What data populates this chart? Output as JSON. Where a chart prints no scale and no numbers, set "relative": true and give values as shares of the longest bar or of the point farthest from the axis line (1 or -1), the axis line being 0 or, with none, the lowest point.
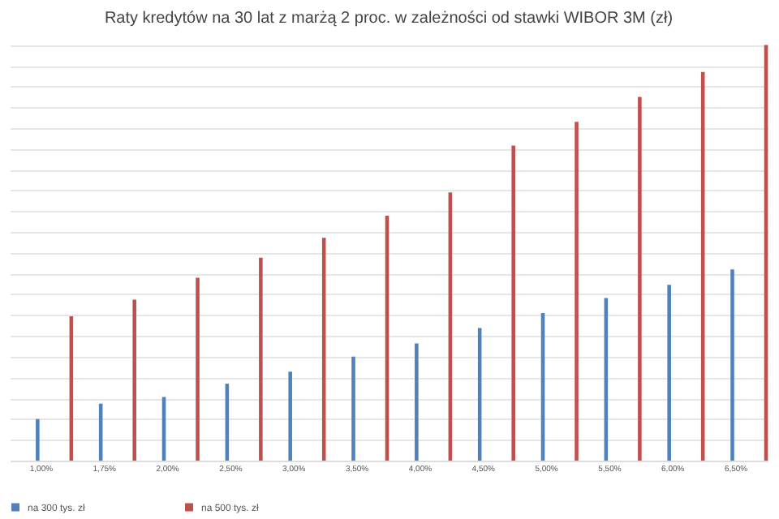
{
  "chart_data": {
    "type": "bar",
    "title": "Raty kredytów na 30 lat z marżą 2 proc. w zależności od stawki WIBOR 3M (zł)",
    "categories": [
      "1,00%",
      "1,75%",
      "2,00%",
      "2,50%",
      "3,00%",
      "3,50%",
      "4,00%",
      "4,50%",
      "5,00%",
      "5,50%",
      "6,00%",
      "6,50%"
    ],
    "series": [
      {
        "name": "na 300 tys. zł",
        "color": "#4f81bd",
        "values": [
          0.1,
          0.137,
          0.153,
          0.185,
          0.214,
          0.25,
          0.282,
          0.319,
          0.355,
          0.391,
          0.423,
          0.46
        ]
      },
      {
        "name": "na 500 tys. zł",
        "color": "#c0504d",
        "values": [
          0.347,
          0.387,
          0.44,
          0.488,
          0.536,
          0.589,
          0.645,
          0.758,
          0.815,
          0.875,
          0.935,
          1
        ]
      }
    ],
    "relative": true,
    "grid": "y",
    "legend": "bottom"
  }
}
